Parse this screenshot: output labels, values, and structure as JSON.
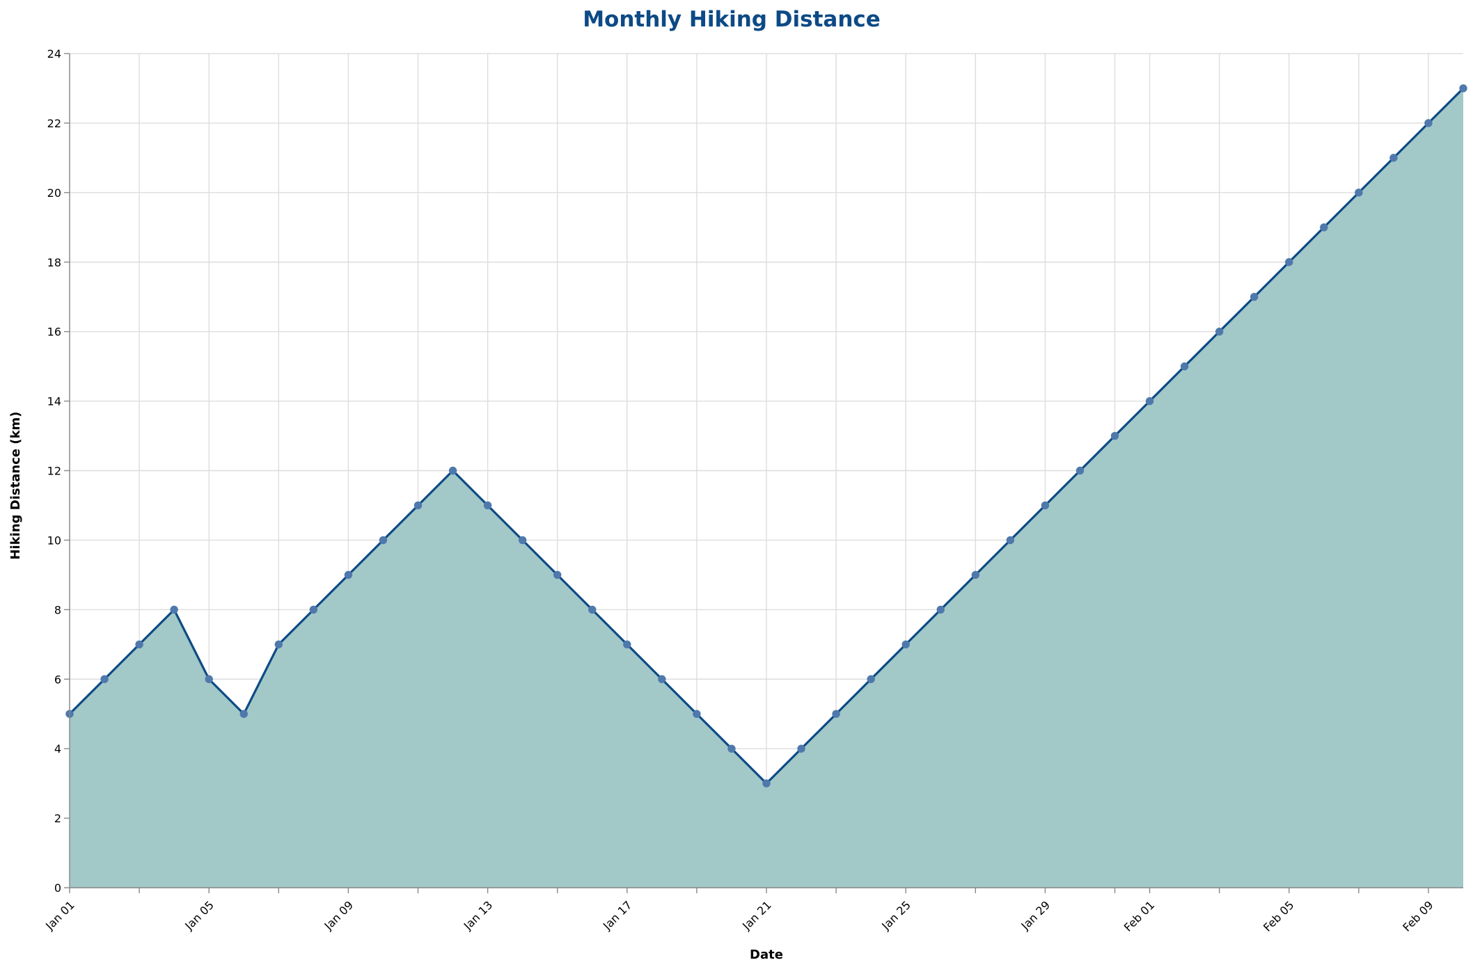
{
  "chart_data": {
    "type": "area",
    "title": "Monthly Hiking Distance",
    "xlabel": "Date",
    "ylabel": "Hiking Distance (km)",
    "ylim": [
      0,
      24
    ],
    "xlim": [
      "2023-01-01",
      "2023-02-10"
    ],
    "y_ticks": [
      0,
      2,
      4,
      6,
      8,
      10,
      12,
      14,
      16,
      18,
      20,
      22,
      24
    ],
    "x_ticks": [
      {
        "date": "2023-01-01",
        "label": "Jan 01"
      },
      {
        "date": "2023-01-03",
        "label": ""
      },
      {
        "date": "2023-01-05",
        "label": "Jan 05"
      },
      {
        "date": "2023-01-07",
        "label": ""
      },
      {
        "date": "2023-01-09",
        "label": "Jan 09"
      },
      {
        "date": "2023-01-11",
        "label": ""
      },
      {
        "date": "2023-01-13",
        "label": "Jan 13"
      },
      {
        "date": "2023-01-15",
        "label": ""
      },
      {
        "date": "2023-01-17",
        "label": "Jan 17"
      },
      {
        "date": "2023-01-19",
        "label": ""
      },
      {
        "date": "2023-01-21",
        "label": "Jan 21"
      },
      {
        "date": "2023-01-23",
        "label": ""
      },
      {
        "date": "2023-01-25",
        "label": "Jan 25"
      },
      {
        "date": "2023-01-27",
        "label": ""
      },
      {
        "date": "2023-01-29",
        "label": "Jan 29"
      },
      {
        "date": "2023-01-31",
        "label": ""
      },
      {
        "date": "2023-02-01",
        "label": "Feb 01"
      },
      {
        "date": "2023-02-03",
        "label": ""
      },
      {
        "date": "2023-02-05",
        "label": "Feb 05"
      },
      {
        "date": "2023-02-07",
        "label": ""
      },
      {
        "date": "2023-02-09",
        "label": "Feb 09"
      }
    ],
    "grid": true,
    "series": [
      {
        "x": [
          "2023-01-01",
          "2023-01-02",
          "2023-01-03",
          "2023-01-04",
          "2023-01-05",
          "2023-01-06",
          "2023-01-07",
          "2023-01-08",
          "2023-01-09",
          "2023-01-10",
          "2023-01-11",
          "2023-01-12",
          "2023-01-13",
          "2023-01-14",
          "2023-01-15",
          "2023-01-16",
          "2023-01-17",
          "2023-01-18",
          "2023-01-19",
          "2023-01-20",
          "2023-01-21",
          "2023-01-22",
          "2023-01-23",
          "2023-01-24",
          "2023-01-25",
          "2023-01-26",
          "2023-01-27",
          "2023-01-28",
          "2023-01-29",
          "2023-01-30",
          "2023-01-31",
          "2023-02-01",
          "2023-02-02",
          "2023-02-03",
          "2023-02-04",
          "2023-02-05",
          "2023-02-06",
          "2023-02-07",
          "2023-02-08",
          "2023-02-09",
          "2023-02-10"
        ],
        "values": [
          5,
          6,
          7,
          8,
          6,
          5,
          7,
          8,
          9,
          10,
          11,
          12,
          11,
          10,
          9,
          8,
          7,
          6,
          5,
          4,
          3,
          4,
          5,
          6,
          7,
          8,
          9,
          10,
          11,
          12,
          13,
          14,
          15,
          16,
          17,
          18,
          19,
          20,
          21,
          22,
          23
        ]
      }
    ],
    "colors": {
      "area_fill": "#a2c8c8",
      "line": "#0d4a86",
      "point": "#4f79ac",
      "title": "#0d4a86"
    }
  }
}
